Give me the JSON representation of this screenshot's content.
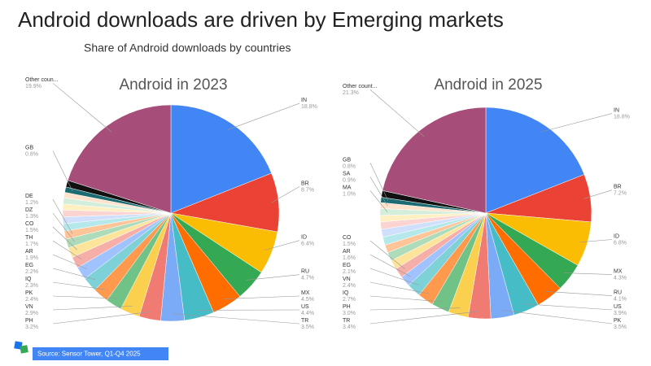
{
  "title": "Android downloads are driven by Emerging markets",
  "subtitle": "Share of Android downloads by countries",
  "source": "Source: Sensor Tower,  Q1-Q4 2025",
  "chart_data": [
    {
      "type": "pie",
      "title": "Android in 2023",
      "categories": [
        "IN",
        "BR",
        "ID",
        "RU",
        "MX",
        "US",
        "TR",
        "PH",
        "VN",
        "PK",
        "IQ",
        "EG",
        "AR",
        "TH",
        "CO",
        "DZ",
        "DE",
        null,
        null,
        null,
        null,
        null,
        null,
        "GB",
        null,
        "Other coun..."
      ],
      "values": [
        18.8,
        8.7,
        6.4,
        4.7,
        4.5,
        4.4,
        3.5,
        3.2,
        2.9,
        2.4,
        2.3,
        2.2,
        1.9,
        1.7,
        1.5,
        1.3,
        1.2,
        1.1,
        1.0,
        1.0,
        0.9,
        0.9,
        0.8,
        0.8,
        1.0,
        19.9
      ],
      "value_labels": [
        "18.8%",
        "8.7%",
        "6.4%",
        "4.7%",
        "4.5%",
        "4.4%",
        "3.5%",
        "3.2%",
        "2.9%",
        "2.4%",
        "2.3%",
        "2.2%",
        "1.9%",
        "1.7%",
        "1.5%",
        "1.3%",
        "1.2%",
        null,
        null,
        null,
        null,
        null,
        null,
        "0.8%",
        null,
        "19.9%"
      ],
      "colors": [
        "#4285f4",
        "#ea4335",
        "#fbbc04",
        "#34a853",
        "#ff6d01",
        "#46bdc6",
        "#7baaf7",
        "#f07b72",
        "#fcd04f",
        "#71c287",
        "#ff994d",
        "#7ed1d7",
        "#a0c3ff",
        "#f6aea9",
        "#fde49b",
        "#aedcba",
        "#ffc599",
        "#b5e8eb",
        "#d0e0fc",
        "#fbd3d0",
        "#fef0c3",
        "#d3eedb",
        "#ffe2cc",
        "#1b6b73",
        "#111111",
        "#a64d79"
      ]
    },
    {
      "type": "pie",
      "title": "Android in 2025",
      "categories": [
        "IN",
        "BR",
        "ID",
        "MX",
        "RU",
        "US",
        "PK",
        "TR",
        "PH",
        "IQ",
        "VN",
        "EG",
        "AR",
        "CO",
        null,
        null,
        null,
        null,
        null,
        null,
        null,
        "MA",
        "SA",
        "GB",
        null,
        "Other count..."
      ],
      "values": [
        18.8,
        7.2,
        6.8,
        4.3,
        4.1,
        3.9,
        3.5,
        3.4,
        3.0,
        2.7,
        2.4,
        2.1,
        1.6,
        1.5,
        1.4,
        1.3,
        1.2,
        1.2,
        1.2,
        1.1,
        1.0,
        1.0,
        0.9,
        0.8,
        1.0,
        21.3
      ],
      "value_labels": [
        "18.8%",
        "7.2%",
        "6.8%",
        "4.3%",
        "4.1%",
        "3.9%",
        "3.5%",
        "3.4%",
        "3.0%",
        "2.7%",
        "2.4%",
        "2.1%",
        "1.6%",
        "1.5%",
        null,
        null,
        null,
        null,
        null,
        null,
        null,
        "1.0%",
        "0.9%",
        "0.8%",
        null,
        "21.3%"
      ],
      "colors": [
        "#4285f4",
        "#ea4335",
        "#fbbc04",
        "#34a853",
        "#ff6d01",
        "#46bdc6",
        "#7baaf7",
        "#f07b72",
        "#fcd04f",
        "#71c287",
        "#ff994d",
        "#7ed1d7",
        "#a0c3ff",
        "#f6aea9",
        "#fde49b",
        "#aedcba",
        "#ffc599",
        "#b5e8eb",
        "#d0e0fc",
        "#fbd3d0",
        "#fef0c3",
        "#d3eedb",
        "#ffe2cc",
        "#1b6b73",
        "#111111",
        "#a64d79"
      ]
    }
  ]
}
